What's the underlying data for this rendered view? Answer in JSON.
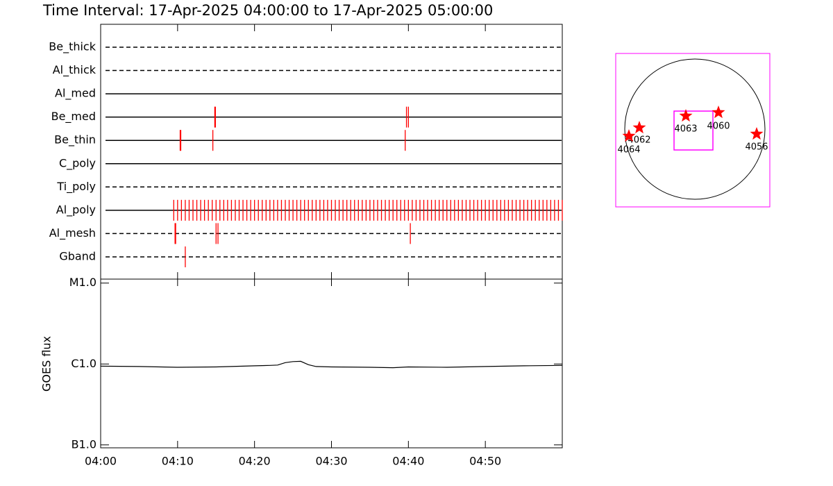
{
  "chart_data": [
    {
      "type": "timeline",
      "title": "Time Interval: 17-Apr-2025 04:00:00 to 17-Apr-2025 05:00:00",
      "xlim": [
        "04:00",
        "05:00"
      ],
      "event_color": "#ff0000",
      "filters": [
        {
          "name": "Be_thick",
          "style": "dashed",
          "events": []
        },
        {
          "name": "Al_thick",
          "style": "dashed",
          "events": []
        },
        {
          "name": "Al_med",
          "style": "solid",
          "events": []
        },
        {
          "name": "Be_med",
          "style": "solid",
          "events": [
            "04:14:50",
            "04:14:55",
            "04:39:45",
            "04:40:00"
          ]
        },
        {
          "name": "Be_thin",
          "style": "solid",
          "events": [
            "04:10:20",
            "04:10:25",
            "04:14:35",
            "04:39:35"
          ]
        },
        {
          "name": "C_poly",
          "style": "solid",
          "events": []
        },
        {
          "name": "Ti_poly",
          "style": "dashed",
          "events": []
        },
        {
          "name": "Al_poly",
          "style": "solid",
          "events": [
            "04:09:30",
            "04:10:00",
            "04:10:30",
            "04:11:00",
            "04:11:30",
            "04:12:00",
            "04:12:30",
            "04:13:00",
            "04:13:30",
            "04:14:00",
            "04:14:30",
            "04:15:00",
            "04:15:30",
            "04:16:00",
            "04:16:30",
            "04:17:00",
            "04:17:30",
            "04:18:00",
            "04:18:30",
            "04:19:00",
            "04:19:30",
            "04:20:00",
            "04:20:30",
            "04:21:00",
            "04:21:30",
            "04:22:00",
            "04:22:30",
            "04:23:00",
            "04:23:30",
            "04:24:00",
            "04:24:30",
            "04:25:00",
            "04:25:30",
            "04:26:00",
            "04:26:30",
            "04:27:00",
            "04:27:30",
            "04:28:00",
            "04:28:30",
            "04:29:00",
            "04:29:30",
            "04:30:00",
            "04:30:30",
            "04:31:00",
            "04:31:30",
            "04:32:00",
            "04:32:30",
            "04:33:00",
            "04:33:30",
            "04:34:00",
            "04:34:30",
            "04:35:00",
            "04:35:30",
            "04:36:00",
            "04:36:30",
            "04:37:00",
            "04:37:30",
            "04:38:00",
            "04:38:30",
            "04:39:00",
            "04:39:30",
            "04:40:00",
            "04:40:30",
            "04:41:00",
            "04:41:30",
            "04:42:00",
            "04:42:30",
            "04:43:00",
            "04:43:30",
            "04:44:00",
            "04:44:30",
            "04:45:00",
            "04:45:30",
            "04:46:00",
            "04:46:30",
            "04:47:00",
            "04:47:30",
            "04:48:00",
            "04:48:30",
            "04:49:00",
            "04:49:30",
            "04:50:00",
            "04:50:30",
            "04:51:00",
            "04:51:30",
            "04:52:00",
            "04:52:30",
            "04:53:00",
            "04:53:30",
            "04:54:00",
            "04:54:30",
            "04:55:00",
            "04:55:30",
            "04:56:00",
            "04:56:30",
            "04:57:00",
            "04:57:30",
            "04:58:00",
            "04:58:30",
            "04:59:00",
            "04:59:30",
            "05:00:00"
          ]
        },
        {
          "name": "Al_mesh",
          "style": "dashed",
          "events": [
            "04:09:40",
            "04:09:45",
            "04:15:00",
            "04:15:15",
            "04:40:15"
          ]
        },
        {
          "name": "Gband",
          "style": "dashed",
          "events": [
            "04:11:00"
          ]
        }
      ]
    },
    {
      "type": "line",
      "y_label": "GOES flux",
      "log_scale": true,
      "color": "#000000",
      "xlim": [
        "04:00",
        "05:00"
      ],
      "xticks": [
        "04:00",
        "04:10",
        "04:20",
        "04:30",
        "04:40",
        "04:50"
      ],
      "ylim": [
        9.2e-08,
        1.12e-05
      ],
      "yticks": [
        {
          "value": 1e-05,
          "label": "M1.0"
        },
        {
          "value": 1e-06,
          "label": "C1.0"
        },
        {
          "value": 1e-07,
          "label": "B1.0"
        }
      ],
      "x": [
        "04:00",
        "04:05",
        "04:10",
        "04:15",
        "04:20",
        "04:22",
        "04:23",
        "04:24",
        "04:25",
        "04:26",
        "04:27",
        "04:28",
        "04:30",
        "04:35",
        "04:38",
        "04:40",
        "04:45",
        "04:50",
        "04:55",
        "05:00"
      ],
      "values": [
        9.4e-07,
        9.3e-07,
        9.1e-07,
        9.2e-07,
        9.5e-07,
        9.6e-07,
        9.7e-07,
        1.04e-06,
        1.07e-06,
        1.08e-06,
        9.8e-07,
        9.3e-07,
        9.2e-07,
        9.1e-07,
        9e-07,
        9.2e-07,
        9.1e-07,
        9.3e-07,
        9.5e-07,
        9.6e-07
      ]
    }
  ],
  "context_map": {
    "box_color": "#ff00ff",
    "region_color": "#ff0000",
    "regions": [
      {
        "label": "4063"
      },
      {
        "label": "4060"
      },
      {
        "label": "4062"
      },
      {
        "label": "4064"
      },
      {
        "label": "4056"
      }
    ]
  }
}
